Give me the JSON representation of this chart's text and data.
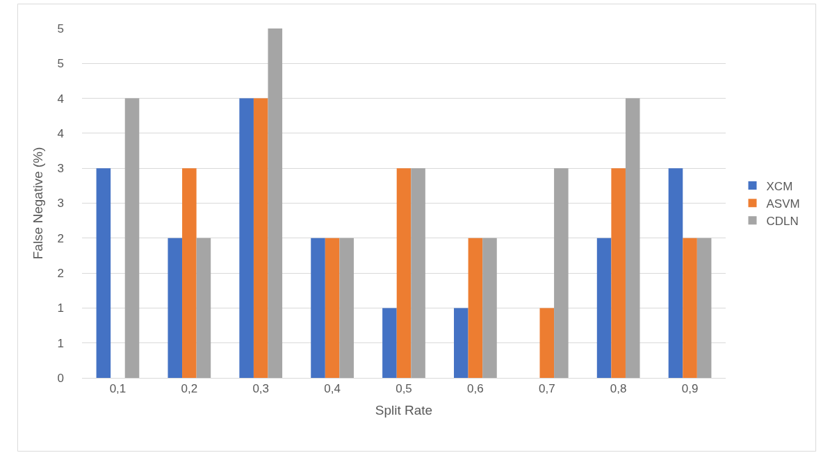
{
  "chart_data": {
    "type": "bar",
    "xlabel": "Split Rate",
    "ylabel": "False Negative (%)",
    "categories": [
      "0,1",
      "0,2",
      "0,3",
      "0,4",
      "0,5",
      "0,6",
      "0,7",
      "0,8",
      "0,9"
    ],
    "series": [
      {
        "name": "XCM",
        "color": "#4472c4",
        "values": [
          3,
          2,
          4,
          2,
          1,
          1,
          0,
          2,
          3
        ]
      },
      {
        "name": "ASVM",
        "color": "#ed7d31",
        "values": [
          0,
          3,
          4,
          2,
          3,
          2,
          1,
          3,
          2
        ]
      },
      {
        "name": "CDLN",
        "color": "#a5a5a5",
        "values": [
          4,
          2,
          5,
          2,
          3,
          2,
          3,
          4,
          2
        ]
      }
    ],
    "ylim": [
      0,
      5
    ],
    "yticks": [
      0,
      {
        "value": 0.5,
        "label": "1"
      },
      1,
      {
        "value": 1.5,
        "label": "2"
      },
      2,
      {
        "value": 2.5,
        "label": "3"
      },
      3,
      {
        "value": 3.5,
        "label": "4"
      },
      4,
      {
        "value": 4.5,
        "label": "5"
      },
      5
    ],
    "grid": "y",
    "legend": "right"
  }
}
